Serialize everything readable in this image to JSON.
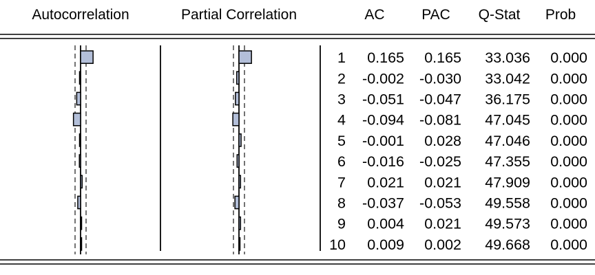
{
  "headers": {
    "autocorrelation": "Autocorrelation",
    "partial_correlation": "Partial Correlation",
    "ac": "AC",
    "pac": "PAC",
    "qstat": "Q-Stat",
    "prob": "Prob"
  },
  "colors": {
    "bar_fill": "#b3bfd9",
    "bar_stroke": "#000000",
    "line": "#000000"
  },
  "chart_data": {
    "type": "table",
    "x": [
      1,
      2,
      3,
      4,
      5,
      6,
      7,
      8,
      9,
      10
    ],
    "series": [
      {
        "name": "AC",
        "values": [
          0.165,
          -0.002,
          -0.051,
          -0.094,
          -0.001,
          -0.016,
          0.021,
          -0.037,
          0.004,
          0.009
        ]
      },
      {
        "name": "PAC",
        "values": [
          0.165,
          -0.03,
          -0.047,
          -0.081,
          0.028,
          -0.025,
          0.021,
          -0.053,
          0.021,
          0.002
        ]
      },
      {
        "name": "Q-Stat",
        "values": [
          33.036,
          33.042,
          36.175,
          47.045,
          47.046,
          47.355,
          47.909,
          49.558,
          49.573,
          49.668
        ]
      },
      {
        "name": "Prob",
        "values": [
          0.0,
          0.0,
          0.0,
          0.0,
          0.0,
          0.0,
          0.0,
          0.0,
          0.0,
          0.0
        ]
      }
    ],
    "rows": [
      {
        "lag": "1",
        "ac": "0.165",
        "pac": "0.165",
        "qstat": "33.036",
        "prob": "0.000"
      },
      {
        "lag": "2",
        "ac": "-0.002",
        "pac": "-0.030",
        "qstat": "33.042",
        "prob": "0.000"
      },
      {
        "lag": "3",
        "ac": "-0.051",
        "pac": "-0.047",
        "qstat": "36.175",
        "prob": "0.000"
      },
      {
        "lag": "4",
        "ac": "-0.094",
        "pac": "-0.081",
        "qstat": "47.045",
        "prob": "0.000"
      },
      {
        "lag": "5",
        "ac": "-0.001",
        "pac": "0.028",
        "qstat": "47.046",
        "prob": "0.000"
      },
      {
        "lag": "6",
        "ac": "-0.016",
        "pac": "-0.025",
        "qstat": "47.355",
        "prob": "0.000"
      },
      {
        "lag": "7",
        "ac": "0.021",
        "pac": "0.021",
        "qstat": "47.909",
        "prob": "0.000"
      },
      {
        "lag": "8",
        "ac": "-0.037",
        "pac": "-0.053",
        "qstat": "49.558",
        "prob": "0.000"
      },
      {
        "lag": "9",
        "ac": "0.004",
        "pac": "0.021",
        "qstat": "49.573",
        "prob": "0.000"
      },
      {
        "lag": "10",
        "ac": "0.009",
        "pac": "0.002",
        "qstat": "49.668",
        "prob": "0.000"
      }
    ]
  }
}
